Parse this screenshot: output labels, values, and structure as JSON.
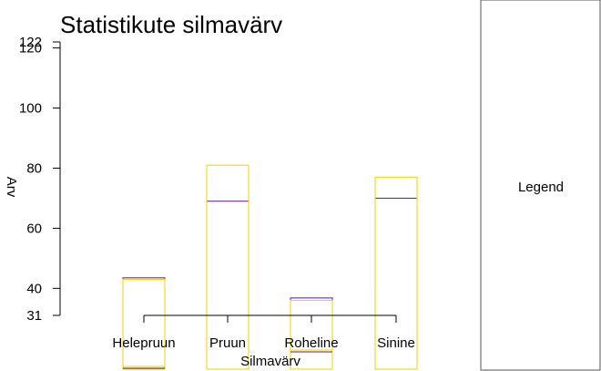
{
  "chart_data": {
    "type": "bar",
    "title": "Statistikute silmavärv",
    "xlabel": "Silmavärv",
    "ylabel": "Arv",
    "categories": [
      "Helepruun",
      "Pruun",
      "Roheline",
      "Sinine"
    ],
    "series": [
      {
        "values": [
          43.5,
          69,
          36.8,
          70
        ],
        "color": "#5b1a8a"
      },
      {
        "values": [
          43,
          81,
          36,
          77
        ],
        "color": "#f2d000"
      }
    ],
    "y_ticks": [
      31,
      40,
      60,
      80,
      100,
      120,
      122
    ],
    "ylim": [
      31,
      122
    ],
    "legend": {
      "title": "Legend",
      "placement": "right"
    }
  }
}
